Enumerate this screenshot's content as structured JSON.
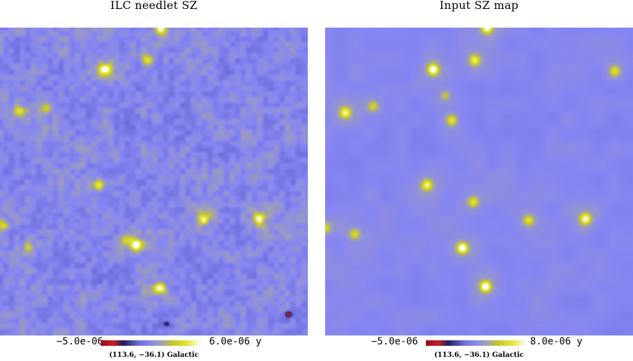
{
  "panels": [
    {
      "id": "ilc",
      "title": "ILC needlet SZ",
      "colorbar_min": "−5.0e-06",
      "colorbar_max": "6.0e-06 y",
      "coordinates": "(113.6, −36.1) Galactic",
      "background_color": "#8686f2",
      "noise": "strong",
      "sources": [
        {
          "u": 0.52,
          "v": 0.0,
          "strength": 0.9
        },
        {
          "u": 0.34,
          "v": 0.135,
          "strength": 1.0
        },
        {
          "u": 0.48,
          "v": 0.105,
          "strength": 0.6
        },
        {
          "u": 0.06,
          "v": 0.27,
          "strength": 0.5
        },
        {
          "u": 0.15,
          "v": 0.26,
          "strength": 0.45
        },
        {
          "u": 0.32,
          "v": 0.51,
          "strength": 0.7
        },
        {
          "u": 0.66,
          "v": 0.62,
          "strength": 0.7
        },
        {
          "u": 0.84,
          "v": 0.62,
          "strength": 0.9
        },
        {
          "u": 0.44,
          "v": 0.705,
          "strength": 1.0
        },
        {
          "u": 0.52,
          "v": 0.845,
          "strength": 1.0
        },
        {
          "u": 0.09,
          "v": 0.71,
          "strength": 0.4
        },
        {
          "u": 0.01,
          "v": 0.64,
          "strength": 0.5
        },
        {
          "u": 0.41,
          "v": 0.69,
          "strength": 0.55
        }
      ],
      "cold_spots": [
        {
          "u": 0.935,
          "v": 0.93,
          "strength": 1.0
        },
        {
          "u": 0.54,
          "v": 0.96,
          "strength": 0.6
        }
      ]
    },
    {
      "id": "input",
      "title": "Input SZ map",
      "colorbar_min": "−5.0e-06",
      "colorbar_max": "8.0e-06 y",
      "coordinates": "(113.6, −36.1) Galactic",
      "background_color": "#8787f2",
      "noise": "weak",
      "sources": [
        {
          "u": 0.525,
          "v": 0.0,
          "strength": 0.9
        },
        {
          "u": 0.35,
          "v": 0.135,
          "strength": 1.0
        },
        {
          "u": 0.485,
          "v": 0.105,
          "strength": 0.7
        },
        {
          "u": 0.94,
          "v": 0.14,
          "strength": 0.6
        },
        {
          "u": 0.065,
          "v": 0.275,
          "strength": 0.75
        },
        {
          "u": 0.155,
          "v": 0.255,
          "strength": 0.45
        },
        {
          "u": 0.41,
          "v": 0.3,
          "strength": 0.65
        },
        {
          "u": 0.33,
          "v": 0.51,
          "strength": 0.75
        },
        {
          "u": 0.48,
          "v": 0.565,
          "strength": 0.6
        },
        {
          "u": 0.66,
          "v": 0.625,
          "strength": 0.6
        },
        {
          "u": 0.845,
          "v": 0.62,
          "strength": 0.85
        },
        {
          "u": 0.445,
          "v": 0.715,
          "strength": 1.0
        },
        {
          "u": 0.095,
          "v": 0.67,
          "strength": 0.55
        },
        {
          "u": 0.52,
          "v": 0.84,
          "strength": 1.0
        },
        {
          "u": 0.0,
          "v": 0.65,
          "strength": 0.5
        },
        {
          "u": 0.39,
          "v": 0.22,
          "strength": 0.4
        }
      ],
      "cold_spots": []
    }
  ]
}
